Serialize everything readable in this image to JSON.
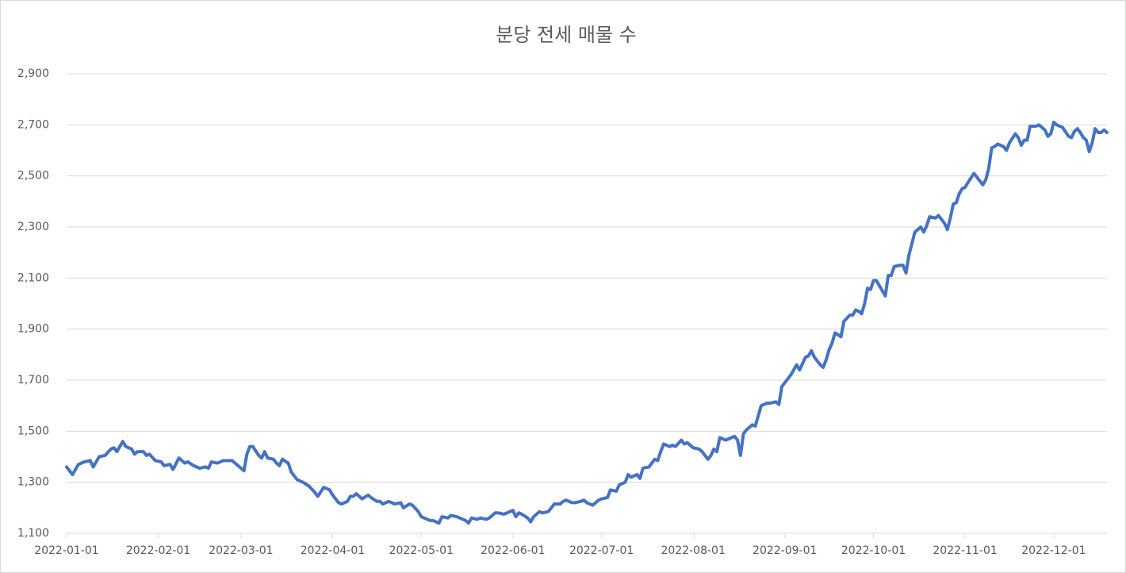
{
  "chart_data": {
    "type": "line",
    "title": "분당 전세 매물 수",
    "x": [
      "2022-01-01",
      "2022-01-03",
      "2022-01-05",
      "2022-01-07",
      "2022-01-09",
      "2022-01-10",
      "2022-01-12",
      "2022-01-14",
      "2022-01-16",
      "2022-01-17",
      "2022-01-18",
      "2022-01-20",
      "2022-01-21",
      "2022-01-23",
      "2022-01-24",
      "2022-01-25",
      "2022-01-27",
      "2022-01-28",
      "2022-01-29",
      "2022-01-31",
      "2022-02-02",
      "2022-02-03",
      "2022-02-05",
      "2022-02-06",
      "2022-02-08",
      "2022-02-10",
      "2022-02-11",
      "2022-02-13",
      "2022-02-15",
      "2022-02-17",
      "2022-02-18",
      "2022-02-19",
      "2022-02-21",
      "2022-02-23",
      "2022-02-25",
      "2022-02-26",
      "2022-02-28",
      "2022-03-02",
      "2022-03-03",
      "2022-03-04",
      "2022-03-05",
      "2022-03-07",
      "2022-03-08",
      "2022-03-09",
      "2022-03-10",
      "2022-03-12",
      "2022-03-13",
      "2022-03-14",
      "2022-03-15",
      "2022-03-17",
      "2022-03-18",
      "2022-03-20",
      "2022-03-22",
      "2022-03-24",
      "2022-03-26",
      "2022-03-27",
      "2022-03-29",
      "2022-03-31",
      "2022-04-01",
      "2022-04-03",
      "2022-04-04",
      "2022-04-06",
      "2022-04-07",
      "2022-04-08",
      "2022-04-09",
      "2022-04-11",
      "2022-04-13",
      "2022-04-14",
      "2022-04-16",
      "2022-04-17",
      "2022-04-18",
      "2022-04-20",
      "2022-04-22",
      "2022-04-24",
      "2022-04-25",
      "2022-04-27",
      "2022-04-28",
      "2022-04-30",
      "2022-05-01",
      "2022-05-04",
      "2022-05-05",
      "2022-05-07",
      "2022-05-08",
      "2022-05-10",
      "2022-05-11",
      "2022-05-13",
      "2022-05-14",
      "2022-05-16",
      "2022-05-17",
      "2022-05-18",
      "2022-05-20",
      "2022-05-21",
      "2022-05-23",
      "2022-05-24",
      "2022-05-26",
      "2022-05-27",
      "2022-05-29",
      "2022-05-31",
      "2022-06-01",
      "2022-06-02",
      "2022-06-03",
      "2022-06-04",
      "2022-06-06",
      "2022-06-07",
      "2022-06-08",
      "2022-06-10",
      "2022-06-11",
      "2022-06-13",
      "2022-06-14",
      "2022-06-15",
      "2022-06-17",
      "2022-06-18",
      "2022-06-19",
      "2022-06-21",
      "2022-06-22",
      "2022-06-24",
      "2022-06-25",
      "2022-06-26",
      "2022-06-28",
      "2022-06-30",
      "2022-07-01",
      "2022-07-03",
      "2022-07-04",
      "2022-07-06",
      "2022-07-07",
      "2022-07-09",
      "2022-07-10",
      "2022-07-11",
      "2022-07-13",
      "2022-07-14",
      "2022-07-15",
      "2022-07-17",
      "2022-07-19",
      "2022-07-20",
      "2022-07-21",
      "2022-07-22",
      "2022-07-24",
      "2022-07-25",
      "2022-07-26",
      "2022-07-28",
      "2022-07-29",
      "2022-07-30",
      "2022-08-01",
      "2022-08-03",
      "2022-08-04",
      "2022-08-06",
      "2022-08-07",
      "2022-08-08",
      "2022-08-09",
      "2022-08-10",
      "2022-08-12",
      "2022-08-13",
      "2022-08-15",
      "2022-08-16",
      "2022-08-17",
      "2022-08-18",
      "2022-08-19",
      "2022-08-21",
      "2022-08-22",
      "2022-08-24",
      "2022-08-26",
      "2022-08-27",
      "2022-08-29",
      "2022-08-30",
      "2022-08-31",
      "2022-09-03",
      "2022-09-05",
      "2022-09-06",
      "2022-09-08",
      "2022-09-09",
      "2022-09-10",
      "2022-09-11",
      "2022-09-13",
      "2022-09-14",
      "2022-09-15",
      "2022-09-16",
      "2022-09-17",
      "2022-09-18",
      "2022-09-20",
      "2022-09-21",
      "2022-09-23",
      "2022-09-24",
      "2022-09-25",
      "2022-09-26",
      "2022-09-27",
      "2022-09-28",
      "2022-09-29",
      "2022-09-30",
      "2022-10-01",
      "2022-10-02",
      "2022-10-03",
      "2022-10-05",
      "2022-10-06",
      "2022-10-07",
      "2022-10-08",
      "2022-10-10",
      "2022-10-11",
      "2022-10-12",
      "2022-10-13",
      "2022-10-14",
      "2022-10-15",
      "2022-10-16",
      "2022-10-17",
      "2022-10-18",
      "2022-10-19",
      "2022-10-20",
      "2022-10-22",
      "2022-10-23",
      "2022-10-25",
      "2022-10-26",
      "2022-10-27",
      "2022-10-28",
      "2022-10-29",
      "2022-10-30",
      "2022-10-31",
      "2022-11-01",
      "2022-11-02",
      "2022-11-04",
      "2022-11-05",
      "2022-11-07",
      "2022-11-08",
      "2022-11-09",
      "2022-11-10",
      "2022-11-11",
      "2022-11-12",
      "2022-11-14",
      "2022-11-15",
      "2022-11-16",
      "2022-11-18",
      "2022-11-19",
      "2022-11-20",
      "2022-11-21",
      "2022-11-22",
      "2022-11-23",
      "2022-11-25",
      "2022-11-26",
      "2022-11-28",
      "2022-11-29",
      "2022-11-30",
      "2022-12-01",
      "2022-12-02",
      "2022-12-03",
      "2022-12-04",
      "2022-12-06",
      "2022-12-07",
      "2022-12-08",
      "2022-12-09",
      "2022-12-10",
      "2022-12-11",
      "2022-12-12",
      "2022-12-13",
      "2022-12-14",
      "2022-12-15",
      "2022-12-16",
      "2022-12-17",
      "2022-12-18",
      "2022-12-19"
    ],
    "series": [
      {
        "name": "매물 수",
        "color": "#4472c4",
        "values": [
          1360,
          1330,
          1370,
          1380,
          1385,
          1360,
          1400,
          1405,
          1430,
          1435,
          1420,
          1460,
          1440,
          1430,
          1410,
          1420,
          1420,
          1405,
          1410,
          1385,
          1380,
          1365,
          1370,
          1350,
          1395,
          1375,
          1380,
          1365,
          1355,
          1360,
          1355,
          1380,
          1375,
          1385,
          1385,
          1385,
          1365,
          1345,
          1410,
          1440,
          1440,
          1405,
          1395,
          1420,
          1395,
          1390,
          1375,
          1365,
          1390,
          1375,
          1340,
          1310,
          1300,
          1285,
          1260,
          1245,
          1280,
          1270,
          1250,
          1220,
          1215,
          1225,
          1245,
          1245,
          1255,
          1235,
          1250,
          1240,
          1225,
          1225,
          1215,
          1225,
          1215,
          1220,
          1200,
          1215,
          1210,
          1185,
          1165,
          1150,
          1150,
          1140,
          1165,
          1160,
          1170,
          1165,
          1160,
          1150,
          1140,
          1160,
          1155,
          1160,
          1155,
          1160,
          1180,
          1180,
          1175,
          1185,
          1190,
          1165,
          1180,
          1175,
          1160,
          1145,
          1165,
          1185,
          1180,
          1185,
          1200,
          1215,
          1215,
          1225,
          1230,
          1220,
          1220,
          1225,
          1230,
          1220,
          1210,
          1230,
          1235,
          1240,
          1270,
          1265,
          1290,
          1300,
          1330,
          1320,
          1330,
          1315,
          1355,
          1360,
          1390,
          1385,
          1420,
          1450,
          1440,
          1445,
          1440,
          1465,
          1450,
          1455,
          1435,
          1430,
          1420,
          1390,
          1405,
          1430,
          1420,
          1475,
          1465,
          1470,
          1480,
          1465,
          1405,
          1490,
          1505,
          1525,
          1520,
          1600,
          1610,
          1610,
          1615,
          1605,
          1675,
          1720,
          1760,
          1740,
          1790,
          1795,
          1815,
          1790,
          1760,
          1750,
          1780,
          1820,
          1845,
          1885,
          1870,
          1930,
          1955,
          1955,
          1975,
          1970,
          1960,
          2000,
          2060,
          2055,
          2090,
          2090,
          2070,
          2030,
          2110,
          2110,
          2145,
          2150,
          2150,
          2120,
          2190,
          2235,
          2280,
          2290,
          2300,
          2280,
          2305,
          2340,
          2335,
          2345,
          2315,
          2290,
          2335,
          2390,
          2395,
          2430,
          2450,
          2455,
          2475,
          2510,
          2495,
          2465,
          2485,
          2530,
          2610,
          2615,
          2625,
          2615,
          2600,
          2630,
          2665,
          2650,
          2620,
          2640,
          2640,
          2695,
          2695,
          2700,
          2680,
          2655,
          2665,
          2710,
          2700,
          2695,
          2690,
          2655,
          2650,
          2675,
          2685,
          2670,
          2650,
          2640,
          2595,
          2630,
          2685,
          2670,
          2670,
          2680,
          2670
        ]
      }
    ],
    "xlim": [
      "2022-01-01",
      "2022-12-19"
    ],
    "xticks": [
      "2022-01-01",
      "2022-02-01",
      "2022-03-01",
      "2022-04-01",
      "2022-05-01",
      "2022-06-01",
      "2022-07-01",
      "2022-08-01",
      "2022-09-01",
      "2022-10-01",
      "2022-11-01",
      "2022-12-01"
    ],
    "ylim": [
      1100,
      2900
    ],
    "yticks": [
      {
        "value": 1100,
        "label": "1,100"
      },
      {
        "value": 1300,
        "label": "1,300"
      },
      {
        "value": 1500,
        "label": "1,500"
      },
      {
        "value": 1700,
        "label": "1,700"
      },
      {
        "value": 1900,
        "label": "1,900"
      },
      {
        "value": 2100,
        "label": "2,100"
      },
      {
        "value": 2300,
        "label": "2,300"
      },
      {
        "value": 2500,
        "label": "2,500"
      },
      {
        "value": 2700,
        "label": "2,700"
      },
      {
        "value": 2900,
        "label": "2,900"
      }
    ],
    "grid": true
  }
}
